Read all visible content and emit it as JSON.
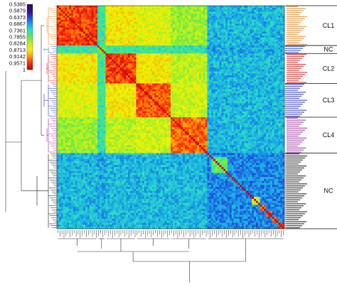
{
  "chart_data": {
    "type": "heatmap",
    "n_samples": 112,
    "color_scale": {
      "labels": [
        "0.5385",
        "0.5879",
        "0.6373",
        "0.6867",
        "0.7361",
        "0.7855",
        "0.8284",
        "0.8713",
        "0.9142",
        "0.9571",
        "1"
      ],
      "colors": [
        "#2a0a5e",
        "#3a0aa0",
        "#1f4fe0",
        "#18a8e8",
        "#2de0c0",
        "#62e84a",
        "#b8f020",
        "#f8f000",
        "#ffa000",
        "#ff3010",
        "#c80000"
      ],
      "range": [
        0.5385,
        1
      ]
    },
    "clusters": [
      {
        "label": "CL1",
        "start": 0,
        "end": 20,
        "color": "#e08a2a",
        "text_color": "#e08a2a",
        "self_similarity": 0.95
      },
      {
        "label": "NC",
        "start": 20,
        "end": 24,
        "color": "#2b7fd6",
        "text_color": "#2b4fd6",
        "self_similarity": 0.78
      },
      {
        "label": "CL2",
        "start": 24,
        "end": 39,
        "color": "#d62020",
        "text_color": "#d62020",
        "self_similarity": 0.95
      },
      {
        "label": "CL3",
        "start": 39,
        "end": 56,
        "color": "#2b30c8",
        "text_color": "#2b30c8",
        "self_similarity": 0.94
      },
      {
        "label": "CL4",
        "start": 56,
        "end": 74,
        "color": "#9a2a9a",
        "text_color": "#9a2a9a",
        "self_similarity": 0.93
      },
      {
        "label": "NC",
        "start": 74,
        "end": 112,
        "color": "#111111",
        "text_color": "#111111",
        "self_similarity": 0.66
      }
    ],
    "cross_similarity": [
      [
        0.95,
        0.74,
        0.86,
        0.84,
        0.8,
        0.69
      ],
      [
        0.74,
        0.78,
        0.74,
        0.74,
        0.73,
        0.68
      ],
      [
        0.86,
        0.74,
        0.95,
        0.86,
        0.82,
        0.69
      ],
      [
        0.84,
        0.74,
        0.86,
        0.94,
        0.83,
        0.69
      ],
      [
        0.8,
        0.73,
        0.82,
        0.83,
        0.93,
        0.69
      ],
      [
        0.69,
        0.68,
        0.69,
        0.69,
        0.69,
        0.66
      ]
    ],
    "subclusters": [
      {
        "start": 76,
        "end": 84,
        "value": 0.76
      },
      {
        "start": 96,
        "end": 100,
        "value": 0.84
      },
      {
        "start": 100,
        "end": 103,
        "value": 0.93
      },
      {
        "start": 103,
        "end": 106,
        "value": 0.94
      },
      {
        "start": 106,
        "end": 109,
        "value": 0.95
      },
      {
        "start": 109,
        "end": 112,
        "value": 0.96
      }
    ],
    "cluster_labels": [
      "CL1",
      "NC",
      "CL2",
      "CL3",
      "CL4",
      "NC"
    ],
    "title": "",
    "xlabel": "",
    "ylabel": "",
    "grid": false
  }
}
